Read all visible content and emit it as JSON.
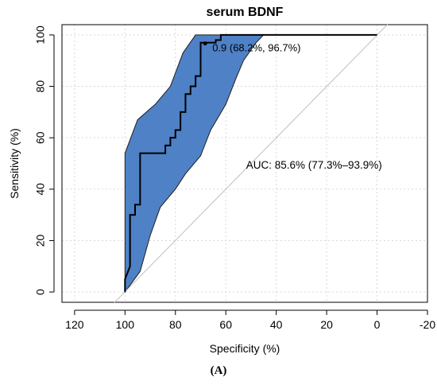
{
  "chart_data": {
    "type": "line",
    "title": "serum BDNF",
    "xlabel": "Specificity (%)",
    "ylabel": "Sensitivity (%)",
    "xlim": [
      125,
      -20
    ],
    "ylim": [
      -4,
      104
    ],
    "x_reversed": true,
    "grid": true,
    "x_ticks": [
      "120",
      "100",
      "80",
      "60",
      "40",
      "20",
      "0",
      "-20"
    ],
    "x_tick_values": [
      120,
      100,
      80,
      60,
      40,
      20,
      0,
      -20
    ],
    "y_ticks": [
      "0",
      "20",
      "40",
      "60",
      "80",
      "100"
    ],
    "y_tick_values": [
      0,
      20,
      40,
      60,
      80,
      100
    ],
    "series": [
      {
        "role": "diagonal",
        "x": [
          100,
          0
        ],
        "y": [
          0,
          100
        ],
        "color": "#bdbdbd"
      },
      {
        "role": "ci-band",
        "color": "#4f81c7",
        "upper": {
          "x": [
            100,
            100,
            95,
            88,
            82,
            77,
            72,
            68,
            64,
            58,
            52,
            45,
            40,
            0
          ],
          "y": [
            0,
            54,
            67,
            73,
            80,
            93,
            100,
            100,
            100,
            100,
            100,
            100,
            100,
            100
          ]
        },
        "lower": {
          "x": [
            100,
            94,
            90,
            86,
            80,
            76,
            70,
            66,
            60,
            56,
            53,
            48,
            45,
            0
          ],
          "y": [
            0,
            8,
            22,
            33,
            40,
            46,
            53,
            63,
            73,
            83,
            90,
            97,
            100,
            100
          ]
        }
      },
      {
        "role": "roc-curve",
        "color": "#000000",
        "x": [
          100,
          100,
          98,
          98,
          96,
          96,
          94,
          94,
          84,
          84,
          82,
          82,
          80,
          80,
          78,
          78,
          76,
          76,
          74,
          74,
          72,
          72,
          70,
          70,
          68,
          68,
          64,
          64,
          62,
          62,
          0
        ],
        "y": [
          0,
          5,
          10,
          30,
          30,
          34,
          34,
          54,
          54,
          57,
          57,
          60,
          60,
          63,
          63,
          70,
          70,
          77,
          77,
          80,
          80,
          84,
          84,
          97,
          97,
          97,
          97,
          98,
          98,
          100,
          100
        ]
      }
    ],
    "threshold_point": {
      "x": 68.2,
      "y": 96.7,
      "label": "0.9 (68.2%, 96.7%)"
    },
    "annotations": [
      {
        "text": "AUC: 85.6% (77.3%–93.9%)",
        "x": 25,
        "y": 48
      }
    ]
  },
  "caption": "(A)"
}
